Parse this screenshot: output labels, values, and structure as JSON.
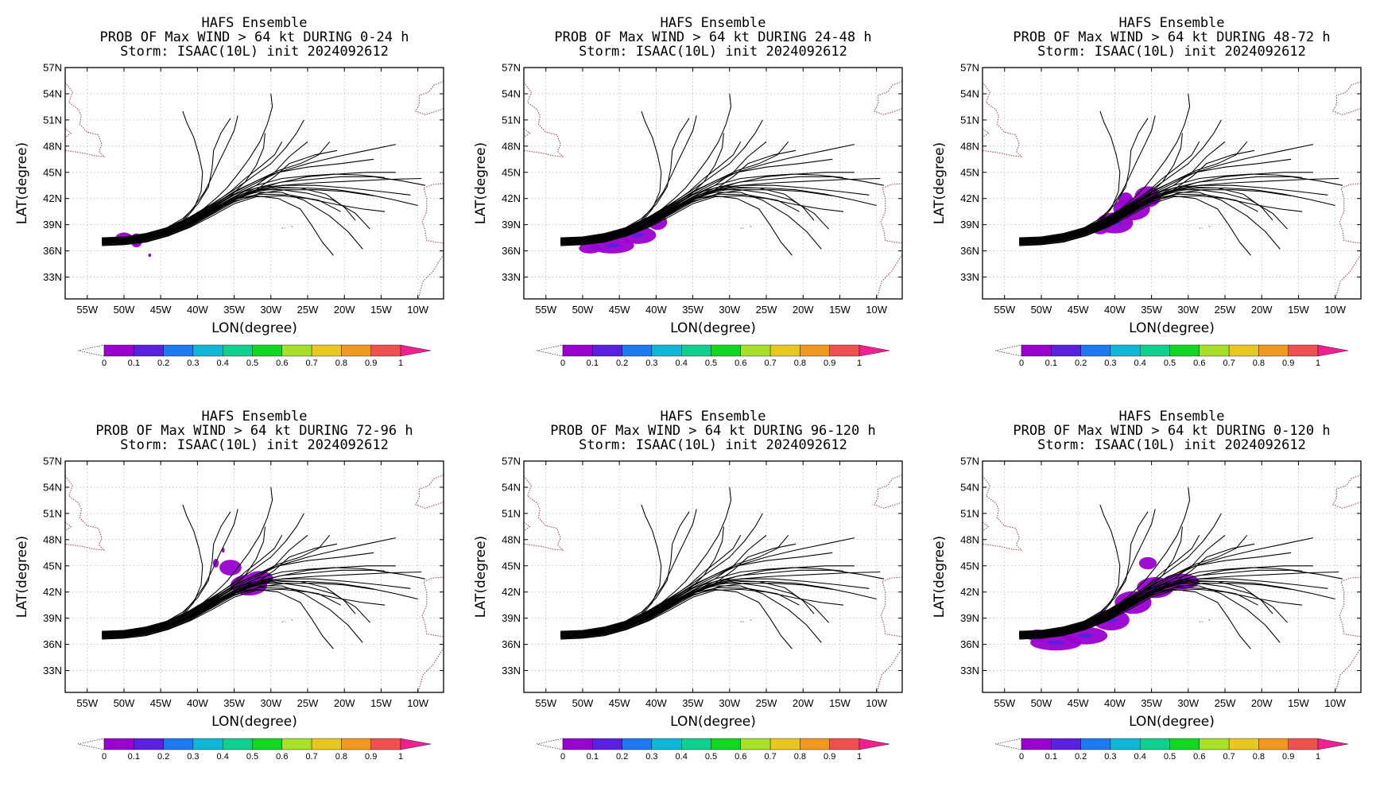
{
  "figure": {
    "model_title": "HAFS Ensemble",
    "storm_line": "Storm: ISAAC(10L) init 2024092612",
    "panels": [
      {
        "id": "p0-24",
        "title_prob": "PROB OF Max WIND > 64 kt DURING  0-24 h",
        "prob_blobs": [
          [
            -48.3,
            37.2,
            0.8,
            0.8
          ],
          [
            -50.0,
            37.4,
            1.2,
            0.7
          ],
          [
            -46.5,
            35.5,
            0.2,
            0.2
          ]
        ]
      },
      {
        "id": "p24-48",
        "title_prob": "PROB OF Max WIND > 64 kt DURING 24-48 h",
        "prob_blobs": [
          [
            -46.0,
            36.6,
            3.0,
            0.9
          ],
          [
            -42.5,
            37.8,
            2.5,
            1.0
          ],
          [
            -39.8,
            39.3,
            1.3,
            0.9
          ],
          [
            -49.0,
            36.3,
            1.5,
            0.6
          ]
        ]
      },
      {
        "id": "p48-72",
        "title_prob": "PROB OF Max WIND > 64 kt DURING 48-72 h",
        "prob_blobs": [
          [
            -40.0,
            39.2,
            2.5,
            1.2
          ],
          [
            -37.7,
            40.8,
            2.5,
            1.3
          ],
          [
            -35.5,
            42.2,
            1.8,
            1.2
          ],
          [
            -38.5,
            41.8,
            1.0,
            0.9
          ],
          [
            -42.0,
            38.6,
            1.2,
            0.7
          ]
        ]
      },
      {
        "id": "p72-96",
        "title_prob": "PROB OF Max WIND > 64 kt DURING 72-96 h",
        "prob_blobs": [
          [
            -35.5,
            44.8,
            1.5,
            0.9
          ],
          [
            -33.0,
            42.8,
            2.5,
            1.2
          ],
          [
            -31.5,
            43.6,
            1.8,
            0.8
          ],
          [
            -37.5,
            45.3,
            0.4,
            0.5
          ],
          [
            -36.5,
            46.8,
            0.2,
            0.3
          ]
        ]
      },
      {
        "id": "p96-120",
        "title_prob": "PROB OF Max WIND > 64 kt DURING 96-120 h",
        "prob_blobs": []
      },
      {
        "id": "p0-120",
        "title_prob": "PROB OF Max WIND > 64 kt DURING 0-120 h",
        "prob_blobs": [
          [
            -48.0,
            36.2,
            3.5,
            0.9
          ],
          [
            -44.0,
            37.0,
            3.0,
            1.0
          ],
          [
            -40.5,
            38.8,
            2.5,
            1.2
          ],
          [
            -37.5,
            40.8,
            2.5,
            1.3
          ],
          [
            -34.5,
            42.5,
            2.5,
            1.2
          ],
          [
            -31.0,
            43.2,
            2.5,
            0.9
          ],
          [
            -35.5,
            45.3,
            1.2,
            0.7
          ],
          [
            -50.5,
            37.0,
            1.5,
            0.7
          ]
        ]
      }
    ]
  },
  "axes": {
    "xlabel": "LON(degree)",
    "ylabel": "LAT(degree)",
    "lon_range": [
      -58.0,
      -6.5
    ],
    "lat_range": [
      30.5,
      57.0
    ],
    "lon_ticks": [
      "55W",
      "50W",
      "45W",
      "40W",
      "35W",
      "30W",
      "25W",
      "20W",
      "15W",
      "10W"
    ],
    "lat_ticks": [
      "57N",
      "54N",
      "51N",
      "48N",
      "45N",
      "42N",
      "39N",
      "36N",
      "33N"
    ],
    "grid": "dotted"
  },
  "colorbar": {
    "labels": [
      "0",
      "0.1",
      "0.2",
      "0.3",
      "0.4",
      "0.5",
      "0.6",
      "0.7",
      "0.8",
      "0.9",
      "1"
    ],
    "colors": [
      "#9a00d0",
      "#5a20e0",
      "#1e7af0",
      "#10b8d8",
      "#10d090",
      "#10d820",
      "#a8e028",
      "#e8c820",
      "#f09820",
      "#f05050",
      "#f02090"
    ],
    "low_extend_color": "#ffffff"
  },
  "coast_color": "#a05050",
  "track_color": "#000000",
  "tracks": [
    [
      [
        -53.0,
        37.5
      ],
      [
        -50.0,
        37.5
      ],
      [
        -47.5,
        37.7
      ],
      [
        -45.0,
        38.3
      ],
      [
        -42.0,
        39.2
      ],
      [
        -39.5,
        40.6
      ],
      [
        -37.5,
        42.0
      ],
      [
        -36.0,
        43.2
      ],
      [
        -34.5,
        44.8
      ],
      [
        -33.0,
        46.5
      ],
      [
        -31.5,
        48.5
      ],
      [
        -30.5,
        50.5
      ],
      [
        -29.8,
        52.5
      ],
      [
        -30.0,
        54.0
      ]
    ],
    [
      [
        -53.0,
        37.3
      ],
      [
        -50.0,
        37.4
      ],
      [
        -47.0,
        37.8
      ],
      [
        -44.5,
        38.5
      ],
      [
        -42.0,
        39.7
      ],
      [
        -40.0,
        41.3
      ],
      [
        -38.5,
        43.3
      ],
      [
        -38.0,
        45.5
      ],
      [
        -37.8,
        47.5
      ],
      [
        -36.8,
        49.5
      ],
      [
        -35.5,
        51.2
      ]
    ],
    [
      [
        -53.0,
        37.2
      ],
      [
        -50.0,
        37.3
      ],
      [
        -47.0,
        37.6
      ],
      [
        -44.5,
        38.2
      ],
      [
        -42.0,
        39.3
      ],
      [
        -40.5,
        40.8
      ],
      [
        -39.5,
        42.8
      ],
      [
        -39.3,
        45.0
      ],
      [
        -39.8,
        47.0
      ],
      [
        -40.5,
        49.0
      ],
      [
        -41.5,
        50.8
      ],
      [
        -42.0,
        52.0
      ]
    ],
    [
      [
        -53.0,
        36.8
      ],
      [
        -50.0,
        37.0
      ],
      [
        -47.0,
        37.5
      ],
      [
        -44.5,
        38.3
      ],
      [
        -42.0,
        39.5
      ],
      [
        -40.5,
        41.0
      ],
      [
        -39.0,
        42.8
      ],
      [
        -38.0,
        44.5
      ],
      [
        -37.0,
        46.3
      ],
      [
        -36.0,
        48.0
      ],
      [
        -35.0,
        49.8
      ],
      [
        -34.5,
        51.5
      ]
    ],
    [
      [
        -53.0,
        37.1
      ],
      [
        -50.0,
        37.2
      ],
      [
        -47.0,
        37.7
      ],
      [
        -44.0,
        38.4
      ],
      [
        -41.0,
        39.6
      ],
      [
        -38.0,
        41.0
      ],
      [
        -35.0,
        42.5
      ],
      [
        -32.0,
        43.8
      ],
      [
        -29.0,
        45.0
      ],
      [
        -25.0,
        46.0
      ],
      [
        -21.0,
        46.8
      ],
      [
        -17.0,
        47.5
      ],
      [
        -13.0,
        48.2
      ]
    ],
    [
      [
        -53.0,
        37.4
      ],
      [
        -50.0,
        37.5
      ],
      [
        -47.0,
        37.9
      ],
      [
        -44.0,
        38.6
      ],
      [
        -41.0,
        39.8
      ],
      [
        -38.0,
        41.2
      ],
      [
        -35.0,
        42.8
      ],
      [
        -32.0,
        44.0
      ],
      [
        -29.0,
        45.0
      ],
      [
        -25.0,
        45.6
      ],
      [
        -20.5,
        46.0
      ],
      [
        -16.0,
        46.5
      ]
    ],
    [
      [
        -53.0,
        36.9
      ],
      [
        -50.0,
        37.0
      ],
      [
        -47.0,
        37.3
      ],
      [
        -44.0,
        38.0
      ],
      [
        -41.0,
        39.1
      ],
      [
        -38.0,
        40.5
      ],
      [
        -35.0,
        41.8
      ],
      [
        -32.0,
        43.0
      ],
      [
        -29.0,
        43.8
      ],
      [
        -25.0,
        44.5
      ],
      [
        -21.0,
        44.8
      ],
      [
        -17.0,
        45.0
      ],
      [
        -13.0,
        45.0
      ]
    ],
    [
      [
        -53.0,
        37.0
      ],
      [
        -50.0,
        37.1
      ],
      [
        -47.0,
        37.4
      ],
      [
        -44.0,
        38.1
      ],
      [
        -41.0,
        39.2
      ],
      [
        -38.0,
        40.6
      ],
      [
        -35.0,
        42.0
      ],
      [
        -32.0,
        43.0
      ],
      [
        -28.5,
        43.5
      ],
      [
        -24.0,
        43.8
      ],
      [
        -19.0,
        44.0
      ],
      [
        -14.0,
        44.2
      ],
      [
        -9.5,
        44.3
      ]
    ],
    [
      [
        -53.0,
        37.3
      ],
      [
        -50.0,
        37.4
      ],
      [
        -47.0,
        37.8
      ],
      [
        -44.0,
        38.5
      ],
      [
        -41.0,
        39.6
      ],
      [
        -38.0,
        41.0
      ],
      [
        -35.0,
        42.5
      ],
      [
        -31.5,
        43.3
      ],
      [
        -28.0,
        43.5
      ],
      [
        -24.0,
        43.5
      ],
      [
        -19.5,
        43.2
      ],
      [
        -15.0,
        42.8
      ],
      [
        -11.0,
        42.4
      ]
    ],
    [
      [
        -53.0,
        36.6
      ],
      [
        -50.0,
        36.7
      ],
      [
        -47.0,
        37.0
      ],
      [
        -44.0,
        37.7
      ],
      [
        -41.0,
        38.8
      ],
      [
        -38.0,
        40.2
      ],
      [
        -35.0,
        41.6
      ],
      [
        -31.5,
        42.6
      ],
      [
        -28.0,
        43.0
      ],
      [
        -24.0,
        43.0
      ],
      [
        -20.0,
        42.8
      ],
      [
        -16.0,
        42.3
      ]
    ],
    [
      [
        -53.0,
        37.0
      ],
      [
        -50.0,
        37.2
      ],
      [
        -47.0,
        37.6
      ],
      [
        -44.0,
        38.3
      ],
      [
        -41.0,
        39.4
      ],
      [
        -38.0,
        40.8
      ],
      [
        -35.0,
        42.2
      ],
      [
        -32.0,
        43.0
      ],
      [
        -28.5,
        43.0
      ],
      [
        -25.0,
        42.6
      ],
      [
        -21.5,
        41.8
      ],
      [
        -18.5,
        40.3
      ],
      [
        -16.5,
        38.5
      ]
    ],
    [
      [
        -53.0,
        37.2
      ],
      [
        -50.0,
        37.3
      ],
      [
        -47.0,
        37.6
      ],
      [
        -44.0,
        38.2
      ],
      [
        -41.0,
        39.2
      ],
      [
        -38.0,
        40.6
      ],
      [
        -35.0,
        42.0
      ],
      [
        -32.0,
        42.7
      ],
      [
        -28.5,
        42.7
      ],
      [
        -25.5,
        41.8
      ],
      [
        -22.0,
        40.0
      ],
      [
        -19.5,
        38.2
      ],
      [
        -17.5,
        36.2
      ]
    ],
    [
      [
        -53.0,
        36.8
      ],
      [
        -50.0,
        36.9
      ],
      [
        -47.0,
        37.2
      ],
      [
        -44.0,
        37.9
      ],
      [
        -41.0,
        39.0
      ],
      [
        -38.0,
        40.4
      ],
      [
        -35.0,
        41.7
      ],
      [
        -32.0,
        42.3
      ],
      [
        -29.0,
        42.0
      ],
      [
        -26.0,
        40.8
      ],
      [
        -24.5,
        39.0
      ],
      [
        -23.0,
        37.0
      ],
      [
        -21.5,
        35.5
      ]
    ],
    [
      [
        -53.0,
        37.5
      ],
      [
        -50.0,
        37.6
      ],
      [
        -47.0,
        38.0
      ],
      [
        -44.0,
        38.7
      ],
      [
        -41.0,
        39.9
      ],
      [
        -38.0,
        41.4
      ],
      [
        -35.0,
        43.0
      ],
      [
        -32.5,
        44.5
      ],
      [
        -30.0,
        46.0
      ],
      [
        -28.0,
        47.8
      ],
      [
        -26.5,
        49.5
      ],
      [
        -25.5,
        51.0
      ]
    ],
    [
      [
        -53.0,
        37.0
      ],
      [
        -50.0,
        37.2
      ],
      [
        -47.0,
        37.5
      ],
      [
        -44.0,
        38.2
      ],
      [
        -41.0,
        39.3
      ],
      [
        -38.0,
        40.7
      ],
      [
        -35.0,
        42.2
      ],
      [
        -32.0,
        43.5
      ],
      [
        -29.5,
        45.0
      ],
      [
        -27.5,
        46.8
      ],
      [
        -25.0,
        48.5
      ]
    ],
    [
      [
        -53.0,
        37.3
      ],
      [
        -50.0,
        37.4
      ],
      [
        -47.0,
        37.8
      ],
      [
        -44.0,
        38.5
      ],
      [
        -41.0,
        39.7
      ],
      [
        -38.0,
        41.1
      ],
      [
        -35.0,
        42.7
      ],
      [
        -32.0,
        44.0
      ],
      [
        -29.0,
        45.2
      ],
      [
        -26.0,
        46.0
      ],
      [
        -23.5,
        47.0
      ],
      [
        -22.0,
        48.5
      ]
    ],
    [
      [
        -53.0,
        36.7
      ],
      [
        -50.0,
        36.8
      ],
      [
        -47.0,
        37.1
      ],
      [
        -44.0,
        37.8
      ],
      [
        -41.0,
        38.9
      ],
      [
        -38.0,
        40.3
      ],
      [
        -35.0,
        41.8
      ],
      [
        -32.0,
        42.8
      ],
      [
        -28.5,
        43.2
      ],
      [
        -25.0,
        43.2
      ],
      [
        -21.0,
        43.0
      ],
      [
        -17.0,
        42.5
      ],
      [
        -13.0,
        41.8
      ],
      [
        -10.0,
        41.2
      ]
    ],
    [
      [
        -53.0,
        37.1
      ],
      [
        -50.0,
        37.3
      ],
      [
        -47.0,
        37.7
      ],
      [
        -44.0,
        38.4
      ],
      [
        -41.0,
        39.5
      ],
      [
        -38.0,
        40.9
      ],
      [
        -35.0,
        42.4
      ],
      [
        -32.0,
        43.5
      ],
      [
        -28.5,
        44.3
      ],
      [
        -25.0,
        44.6
      ],
      [
        -21.5,
        44.8
      ],
      [
        -18.0,
        44.7
      ],
      [
        -14.5,
        44.4
      ]
    ],
    [
      [
        -53.0,
        36.9
      ],
      [
        -50.0,
        37.0
      ],
      [
        -47.0,
        37.4
      ],
      [
        -44.0,
        38.0
      ],
      [
        -41.0,
        39.1
      ],
      [
        -38.0,
        40.5
      ],
      [
        -35.0,
        41.9
      ],
      [
        -32.0,
        42.9
      ],
      [
        -29.0,
        43.3
      ],
      [
        -26.0,
        43.2
      ],
      [
        -22.5,
        42.5
      ],
      [
        -20.0,
        41.0
      ],
      [
        -18.5,
        39.5
      ]
    ],
    [
      [
        -53.0,
        37.2
      ],
      [
        -50.0,
        37.3
      ],
      [
        -47.0,
        37.7
      ],
      [
        -44.0,
        38.3
      ],
      [
        -41.0,
        39.4
      ],
      [
        -38.0,
        40.8
      ],
      [
        -35.5,
        42.3
      ],
      [
        -33.5,
        43.9
      ],
      [
        -32.0,
        45.8
      ],
      [
        -31.0,
        47.8
      ],
      [
        -30.8,
        49.5
      ]
    ],
    [
      [
        -53.0,
        37.0
      ],
      [
        -50.0,
        37.1
      ],
      [
        -47.0,
        37.5
      ],
      [
        -44.0,
        38.1
      ],
      [
        -41.0,
        39.2
      ],
      [
        -38.0,
        40.5
      ],
      [
        -35.0,
        41.9
      ],
      [
        -31.5,
        42.5
      ],
      [
        -27.5,
        42.4
      ],
      [
        -23.5,
        41.8
      ],
      [
        -20.5,
        40.5
      ]
    ],
    [
      [
        -53.0,
        36.6
      ],
      [
        -50.0,
        36.8
      ],
      [
        -47.0,
        37.1
      ],
      [
        -44.0,
        37.7
      ],
      [
        -41.0,
        38.7
      ],
      [
        -38.0,
        40.0
      ],
      [
        -35.0,
        41.4
      ],
      [
        -32.0,
        42.2
      ],
      [
        -28.5,
        42.3
      ],
      [
        -25.0,
        42.0
      ],
      [
        -21.0,
        41.3
      ],
      [
        -17.5,
        40.8
      ],
      [
        -14.5,
        40.5
      ]
    ],
    [
      [
        -53.0,
        37.4
      ],
      [
        -50.0,
        37.5
      ],
      [
        -47.0,
        37.9
      ],
      [
        -44.0,
        38.6
      ],
      [
        -41.0,
        39.8
      ],
      [
        -38.0,
        41.3
      ],
      [
        -35.5,
        42.8
      ],
      [
        -33.5,
        44.3
      ],
      [
        -31.5,
        45.6
      ],
      [
        -29.5,
        47.0
      ],
      [
        -28.5,
        48.5
      ]
    ],
    [
      [
        -53.0,
        37.0
      ],
      [
        -50.0,
        37.1
      ],
      [
        -47.0,
        37.5
      ],
      [
        -44.0,
        38.2
      ],
      [
        -41.0,
        39.3
      ],
      [
        -38.0,
        40.7
      ],
      [
        -35.0,
        42.1
      ],
      [
        -32.0,
        43.2
      ],
      [
        -28.5,
        43.9
      ],
      [
        -24.5,
        44.2
      ],
      [
        -20.5,
        44.5
      ],
      [
        -16.0,
        44.5
      ],
      [
        -12.0,
        44.0
      ],
      [
        -9.0,
        43.5
      ]
    ],
    [
      [
        -53.0,
        36.8
      ],
      [
        -50.0,
        36.9
      ],
      [
        -47.0,
        37.3
      ],
      [
        -44.0,
        37.9
      ],
      [
        -41.0,
        39.0
      ],
      [
        -38.0,
        40.4
      ],
      [
        -35.0,
        41.8
      ],
      [
        -32.0,
        43.0
      ],
      [
        -29.5,
        44.5
      ],
      [
        -27.5,
        46.0
      ],
      [
        -24.0,
        47.0
      ],
      [
        -21.0,
        47.5
      ]
    ]
  ]
}
